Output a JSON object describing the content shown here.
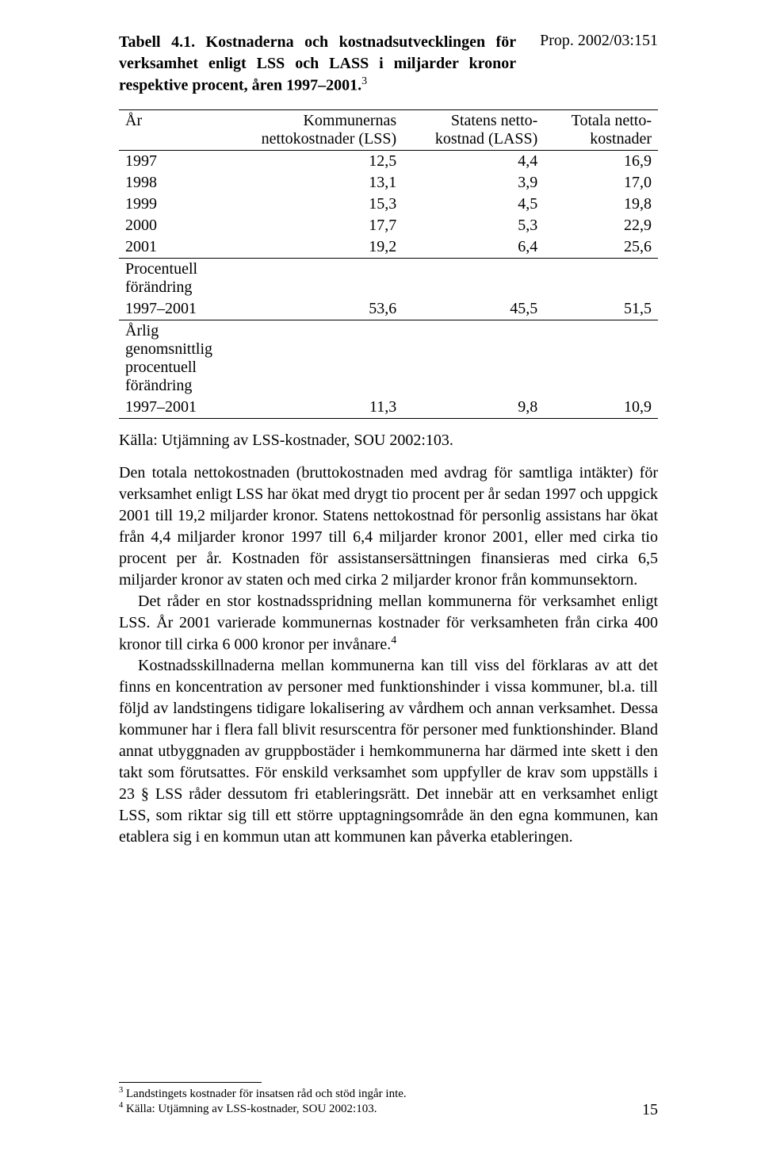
{
  "header": {
    "prop_ref": "Prop. 2002/03:151"
  },
  "table_caption": {
    "label": "Tabell 4.1. Kostnaderna och kostnadsutvecklingen för verksamhet enligt LSS och LASS i miljarder kronor respektive procent, åren 1997–2001.",
    "footnote_ref": "3"
  },
  "table": {
    "type": "table",
    "columns": [
      {
        "label": "År",
        "align": "left"
      },
      {
        "label_line1": "Kommunernas",
        "label_line2": "nettokostnader (LSS)",
        "align": "right"
      },
      {
        "label_line1": "Statens netto-",
        "label_line2": "kostnad (LASS)",
        "align": "right"
      },
      {
        "label_line1": "Totala netto-",
        "label_line2": "kostnader",
        "align": "right"
      }
    ],
    "rows": [
      [
        "1997",
        "12,5",
        "4,4",
        "16,9"
      ],
      [
        "1998",
        "13,1",
        "3,9",
        "17,0"
      ],
      [
        "1999",
        "15,3",
        "4,5",
        "19,8"
      ],
      [
        "2000",
        "17,7",
        "5,3",
        "22,9"
      ],
      [
        "2001",
        "19,2",
        "6,4",
        "25,6"
      ]
    ],
    "section2": {
      "label_line1": "Procentuell",
      "label_line2": "förändring",
      "row": [
        "1997–2001",
        "53,6",
        "45,5",
        "51,5"
      ]
    },
    "section3": {
      "label_line1": "Årlig",
      "label_line2": "genomsnittlig",
      "label_line3": "procentuell",
      "label_line4": "förändring",
      "row": [
        "1997–2001",
        "11,3",
        "9,8",
        "10,9"
      ]
    },
    "styling": {
      "font_family": "Times New Roman",
      "font_size_pt": 15,
      "border_color": "#000000",
      "background_color": "#ffffff",
      "text_color": "#000000"
    }
  },
  "source_line": "Källa: Utjämning av LSS-kostnader, SOU 2002:103.",
  "body": {
    "p1": "Den totala nettokostnaden (bruttokostnaden med avdrag för samtliga intäkter) för verksamhet enligt LSS har ökat med drygt tio procent per år sedan 1997 och uppgick 2001 till 19,2 miljarder kronor. Statens nettokostnad för personlig assistans har ökat från 4,4 miljarder kronor 1997 till 6,4 miljarder kronor 2001, eller med cirka tio procent per år. Kostnaden för assistansersättningen finansieras med cirka 6,5 miljarder kronor av staten och med cirka 2 miljarder kronor från kommunsektorn.",
    "p2_part1": "Det råder en stor kostnadsspridning mellan kommunerna för verksamhet enligt LSS. År 2001 varierade kommunernas kostnader för verksamheten från cirka 400 kronor till cirka 6 000 kronor per invånare.",
    "p2_footnote_ref": "4",
    "p3": "Kostnadsskillnaderna mellan kommunerna kan till viss del förklaras av att det finns en koncentration av personer med funktionshinder i vissa kommuner, bl.a. till följd av landstingens tidigare lokalisering av vårdhem och annan verksamhet. Dessa kommuner har i flera fall blivit resurscentra för personer med funktionshinder. Bland annat utbyggnaden av gruppbostäder i hemkommunerna har därmed inte skett i den takt som förutsattes. För enskild verksamhet som uppfyller de krav som uppställs i 23 § LSS råder dessutom fri etableringsrätt. Det innebär att en verksamhet enligt LSS, som riktar sig till ett större upptagningsområde än den egna kommunen, kan etablera sig i en kommun utan att kommunen kan påverka etableringen."
  },
  "footnotes": {
    "f3": {
      "ref": "3",
      "text": "Landstingets kostnader för insatsen råd och stöd ingår inte."
    },
    "f4": {
      "ref": "4",
      "text": "Källa: Utjämning av LSS-kostnader, SOU 2002:103."
    }
  },
  "page_number": "15"
}
